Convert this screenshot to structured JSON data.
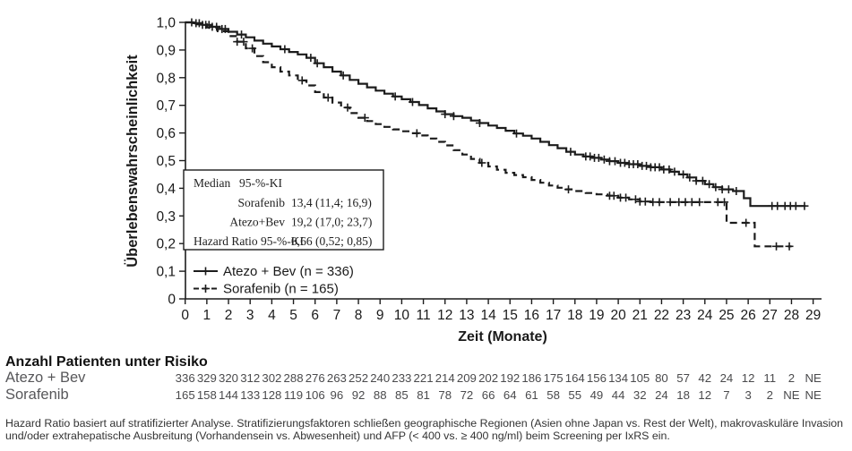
{
  "chart_data": {
    "type": "line",
    "subtype": "kaplan-meier-step",
    "title": "",
    "xlabel": "Zeit (Monate)",
    "ylabel": "Überlebenswahrscheinlichkeit",
    "xlim": [
      0,
      29
    ],
    "ylim": [
      0,
      1.0
    ],
    "grid": false,
    "legend_position": "inside-lower-left",
    "line_color": "#1c1c1c",
    "xticks": [
      0,
      1,
      2,
      3,
      4,
      5,
      6,
      7,
      8,
      9,
      10,
      11,
      12,
      13,
      14,
      15,
      16,
      17,
      18,
      19,
      20,
      21,
      22,
      23,
      24,
      25,
      26,
      27,
      28,
      29
    ],
    "ytick_values": [
      1.0,
      0.9,
      0.8,
      0.7,
      0.6,
      0.5,
      0.4,
      0.3,
      0.2,
      0.1,
      0
    ],
    "ytick_labels": [
      "1,0",
      "0,9",
      "0,8",
      "0,7",
      "0,6",
      "0,5",
      "0,4",
      "0,3",
      "0,2",
      "0,1",
      "0"
    ],
    "series": [
      {
        "name": "Atezo + Bev (n = 336)",
        "line_style": "solid",
        "end_time": 28.65,
        "points": [
          [
            0,
            1.0
          ],
          [
            0.4,
            0.997
          ],
          [
            0.8,
            0.991
          ],
          [
            1.2,
            0.984
          ],
          [
            1.6,
            0.976
          ],
          [
            2.0,
            0.966
          ],
          [
            2.4,
            0.956
          ],
          [
            2.8,
            0.946
          ],
          [
            3.2,
            0.934
          ],
          [
            3.6,
            0.923
          ],
          [
            4.0,
            0.913
          ],
          [
            4.4,
            0.903
          ],
          [
            4.8,
            0.893
          ],
          [
            5.2,
            0.884
          ],
          [
            5.6,
            0.872
          ],
          [
            6.0,
            0.852
          ],
          [
            6.4,
            0.838
          ],
          [
            6.8,
            0.822
          ],
          [
            7.2,
            0.808
          ],
          [
            7.6,
            0.792
          ],
          [
            8.0,
            0.778
          ],
          [
            8.4,
            0.765
          ],
          [
            8.8,
            0.753
          ],
          [
            9.2,
            0.742
          ],
          [
            9.6,
            0.732
          ],
          [
            10.0,
            0.722
          ],
          [
            10.4,
            0.712
          ],
          [
            10.8,
            0.701
          ],
          [
            11.2,
            0.689
          ],
          [
            11.6,
            0.678
          ],
          [
            12.0,
            0.668
          ],
          [
            12.4,
            0.661
          ],
          [
            12.8,
            0.655
          ],
          [
            13.2,
            0.645
          ],
          [
            13.6,
            0.636
          ],
          [
            14.0,
            0.627
          ],
          [
            14.4,
            0.618
          ],
          [
            14.8,
            0.608
          ],
          [
            15.2,
            0.598
          ],
          [
            15.6,
            0.59
          ],
          [
            16.0,
            0.58
          ],
          [
            16.4,
            0.568
          ],
          [
            16.8,
            0.556
          ],
          [
            17.2,
            0.545
          ],
          [
            17.6,
            0.532
          ],
          [
            18.0,
            0.522
          ],
          [
            18.4,
            0.515
          ],
          [
            18.8,
            0.51
          ],
          [
            19.2,
            0.504
          ],
          [
            19.6,
            0.498
          ],
          [
            20.0,
            0.492
          ],
          [
            20.5,
            0.487
          ],
          [
            21.0,
            0.481
          ],
          [
            21.5,
            0.476
          ],
          [
            22.0,
            0.468
          ],
          [
            22.4,
            0.46
          ],
          [
            22.8,
            0.45
          ],
          [
            23.2,
            0.439
          ],
          [
            23.6,
            0.427
          ],
          [
            24.0,
            0.415
          ],
          [
            24.4,
            0.404
          ],
          [
            24.8,
            0.396
          ],
          [
            25.3,
            0.39
          ],
          [
            25.8,
            0.364
          ],
          [
            26.1,
            0.336
          ]
        ],
        "censor_times": [
          0.3,
          0.5,
          0.65,
          0.8,
          0.95,
          1.1,
          1.25,
          1.45,
          1.7,
          1.85,
          2.6,
          4.6,
          5.8,
          6.1,
          7.3,
          9.7,
          10.5,
          12.0,
          12.4,
          13.6,
          15.3,
          17.8,
          18.5,
          18.7,
          18.9,
          19.1,
          19.35,
          19.6,
          19.85,
          20.1,
          20.3,
          20.5,
          20.7,
          20.9,
          21.1,
          21.3,
          21.5,
          21.7,
          21.9,
          22.1,
          22.35,
          22.6,
          23.0,
          23.3,
          23.6,
          23.9,
          24.2,
          24.5,
          24.8,
          25.1,
          25.45,
          27.1,
          27.35,
          27.7,
          27.95,
          28.2,
          28.6
        ]
      },
      {
        "name": "Sorafenib (n = 165)",
        "line_style": "dashed",
        "end_time": 28.0,
        "points": [
          [
            0,
            1.0
          ],
          [
            0.5,
            0.993
          ],
          [
            1.0,
            0.982
          ],
          [
            1.5,
            0.968
          ],
          [
            2.0,
            0.95
          ],
          [
            2.4,
            0.93
          ],
          [
            2.8,
            0.906
          ],
          [
            3.2,
            0.878
          ],
          [
            3.6,
            0.856
          ],
          [
            4.0,
            0.838
          ],
          [
            4.4,
            0.822
          ],
          [
            4.8,
            0.808
          ],
          [
            5.2,
            0.79
          ],
          [
            5.6,
            0.772
          ],
          [
            6.0,
            0.748
          ],
          [
            6.4,
            0.728
          ],
          [
            6.8,
            0.71
          ],
          [
            7.2,
            0.692
          ],
          [
            7.6,
            0.672
          ],
          [
            8.0,
            0.655
          ],
          [
            8.4,
            0.643
          ],
          [
            8.8,
            0.632
          ],
          [
            9.2,
            0.622
          ],
          [
            9.6,
            0.613
          ],
          [
            10.0,
            0.606
          ],
          [
            10.4,
            0.599
          ],
          [
            10.8,
            0.591
          ],
          [
            11.2,
            0.58
          ],
          [
            11.6,
            0.568
          ],
          [
            12.0,
            0.555
          ],
          [
            12.4,
            0.538
          ],
          [
            12.8,
            0.522
          ],
          [
            13.2,
            0.506
          ],
          [
            13.6,
            0.492
          ],
          [
            14.0,
            0.479
          ],
          [
            14.4,
            0.467
          ],
          [
            14.8,
            0.456
          ],
          [
            15.2,
            0.448
          ],
          [
            15.6,
            0.44
          ],
          [
            16.0,
            0.43
          ],
          [
            16.4,
            0.42
          ],
          [
            16.8,
            0.41
          ],
          [
            17.2,
            0.402
          ],
          [
            17.6,
            0.396
          ],
          [
            18.0,
            0.39
          ],
          [
            18.5,
            0.383
          ],
          [
            19.0,
            0.378
          ],
          [
            19.5,
            0.373
          ],
          [
            20.0,
            0.366
          ],
          [
            20.5,
            0.36
          ],
          [
            21.0,
            0.352
          ],
          [
            21.5,
            0.35
          ],
          [
            25.0,
            0.275
          ],
          [
            26.3,
            0.19
          ]
        ],
        "censor_times": [
          2.4,
          2.7,
          3.1,
          5.4,
          6.6,
          7.5,
          8.3,
          10.7,
          13.7,
          17.7,
          19.6,
          19.8,
          20.1,
          20.35,
          20.8,
          21.0,
          21.25,
          21.6,
          21.9,
          22.4,
          22.8,
          23.1,
          23.4,
          23.75,
          24.6,
          24.9,
          25.9,
          27.3,
          27.9
        ]
      }
    ],
    "stats_box": {
      "header_label": "Median",
      "header_ci": "95-%-KI",
      "rows": [
        {
          "label": "Sorafenib",
          "value": "13,4 (11,4; 16,9)",
          "label_align": "right"
        },
        {
          "label": "Atezo+Bev",
          "value": "19,2 (17,0; 23,7)",
          "label_align": "right"
        },
        {
          "label": "Hazard Ratio 95-%-KI",
          "value": "0,66 (0,52; 0,85)",
          "label_align": "left"
        }
      ]
    }
  },
  "risk_table": {
    "title": "Anzahl Patienten unter Risiko",
    "rows": [
      {
        "label": "Atezo + Bev",
        "values": [
          "336",
          "329",
          "320",
          "312",
          "302",
          "288",
          "276",
          "263",
          "252",
          "240",
          "233",
          "221",
          "214",
          "209",
          "202",
          "192",
          "186",
          "175",
          "164",
          "156",
          "134",
          "105",
          "80",
          "57",
          "42",
          "24",
          "12",
          "11",
          "2",
          "NE"
        ]
      },
      {
        "label": "Sorafenib",
        "values": [
          "165",
          "158",
          "144",
          "133",
          "128",
          "119",
          "106",
          "96",
          "92",
          "88",
          "85",
          "81",
          "78",
          "72",
          "66",
          "64",
          "61",
          "58",
          "55",
          "49",
          "44",
          "32",
          "24",
          "18",
          "12",
          "7",
          "3",
          "2",
          "NE",
          "NE"
        ]
      }
    ]
  },
  "footnote": {
    "line1": "Hazard Ratio basiert auf stratifizierter Analyse.  Stratifizierungsfaktoren schließen geographische Regionen (Asien ohne Japan vs. Rest der Welt), makrovaskuläre Invasion",
    "line2": "und/oder extrahepatische Ausbreitung (Vorhandensein vs. Abwesenheit) und AFP  (< 400 vs.  ≥ 400 ng/ml) beim Screening per IxRS  ein."
  }
}
